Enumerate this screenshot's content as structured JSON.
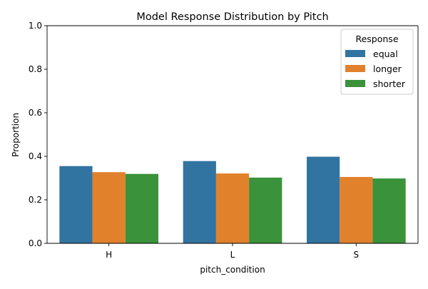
{
  "chart_data": {
    "type": "bar",
    "title": "Model Response Distribution by Pitch",
    "xlabel": "pitch_condition",
    "ylabel": "Proportion",
    "categories": [
      "H",
      "L",
      "S"
    ],
    "ylim": [
      0,
      1.0
    ],
    "yticks": [
      0.0,
      0.2,
      0.4,
      0.6,
      0.8,
      1.0
    ],
    "ytick_labels": [
      "0.0",
      "0.2",
      "0.4",
      "0.6",
      "0.8",
      "1.0"
    ],
    "grid": false,
    "legend": {
      "title": "Response",
      "position": "top-right"
    },
    "series": [
      {
        "name": "equal",
        "color": "#3274a1",
        "values": [
          0.355,
          0.378,
          0.398
        ]
      },
      {
        "name": "longer",
        "color": "#e1812c",
        "values": [
          0.327,
          0.321,
          0.305
        ]
      },
      {
        "name": "shorter",
        "color": "#3a923a",
        "values": [
          0.319,
          0.302,
          0.298
        ]
      }
    ]
  }
}
